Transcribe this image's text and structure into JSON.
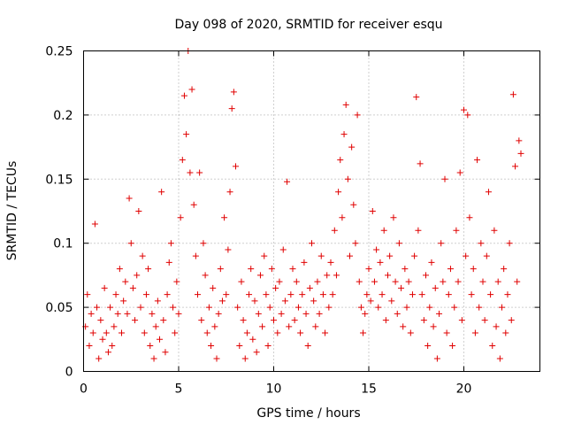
{
  "chart_data": {
    "type": "scatter",
    "title": "Day 098 of 2020, SRMTID for receiver esqu",
    "xlabel": "GPS time / hours",
    "ylabel": "SRMTID / TECUs",
    "xlim": [
      0,
      24
    ],
    "ylim": [
      0,
      0.25
    ],
    "x_ticks": [
      0,
      5,
      10,
      15,
      20
    ],
    "x_tick_labels": [
      "0",
      "5",
      "10",
      "15",
      "20"
    ],
    "y_ticks": [
      0,
      0.05,
      0.1,
      0.15,
      0.2,
      0.25
    ],
    "y_tick_labels": [
      "0",
      "0.05",
      "0.1",
      "0.15",
      "0.2",
      "0.25"
    ],
    "grid": true,
    "legend": "none",
    "series": [
      {
        "name": "SRMTID",
        "color": "#e00000",
        "marker": "plus",
        "points": [
          [
            0.1,
            0.035
          ],
          [
            0.2,
            0.06
          ],
          [
            0.3,
            0.02
          ],
          [
            0.4,
            0.045
          ],
          [
            0.5,
            0.03
          ],
          [
            0.6,
            0.115
          ],
          [
            0.7,
            0.05
          ],
          [
            0.8,
            0.01
          ],
          [
            0.9,
            0.04
          ],
          [
            1.0,
            0.025
          ],
          [
            1.1,
            0.065
          ],
          [
            1.2,
            0.03
          ],
          [
            1.3,
            0.015
          ],
          [
            1.4,
            0.05
          ],
          [
            1.5,
            0.02
          ],
          [
            1.6,
            0.035
          ],
          [
            1.7,
            0.06
          ],
          [
            1.8,
            0.045
          ],
          [
            1.9,
            0.08
          ],
          [
            2.0,
            0.03
          ],
          [
            2.1,
            0.055
          ],
          [
            2.2,
            0.07
          ],
          [
            2.3,
            0.045
          ],
          [
            2.4,
            0.135
          ],
          [
            2.5,
            0.1
          ],
          [
            2.6,
            0.065
          ],
          [
            2.7,
            0.04
          ],
          [
            2.8,
            0.075
          ],
          [
            2.9,
            0.125
          ],
          [
            3.0,
            0.05
          ],
          [
            3.1,
            0.09
          ],
          [
            3.2,
            0.03
          ],
          [
            3.3,
            0.06
          ],
          [
            3.4,
            0.08
          ],
          [
            3.5,
            0.02
          ],
          [
            3.6,
            0.045
          ],
          [
            3.7,
            0.01
          ],
          [
            3.8,
            0.035
          ],
          [
            3.9,
            0.055
          ],
          [
            4.0,
            0.025
          ],
          [
            4.1,
            0.14
          ],
          [
            4.2,
            0.04
          ],
          [
            4.3,
            0.015
          ],
          [
            4.4,
            0.06
          ],
          [
            4.5,
            0.085
          ],
          [
            4.6,
            0.1
          ],
          [
            4.7,
            0.05
          ],
          [
            4.8,
            0.03
          ],
          [
            4.9,
            0.07
          ],
          [
            5.0,
            0.045
          ],
          [
            5.1,
            0.12
          ],
          [
            5.2,
            0.165
          ],
          [
            5.3,
            0.215
          ],
          [
            5.4,
            0.185
          ],
          [
            5.5,
            0.25
          ],
          [
            5.6,
            0.155
          ],
          [
            5.7,
            0.22
          ],
          [
            5.8,
            0.13
          ],
          [
            5.9,
            0.09
          ],
          [
            6.0,
            0.06
          ],
          [
            6.1,
            0.155
          ],
          [
            6.2,
            0.04
          ],
          [
            6.3,
            0.1
          ],
          [
            6.4,
            0.075
          ],
          [
            6.5,
            0.03
          ],
          [
            6.6,
            0.05
          ],
          [
            6.7,
            0.02
          ],
          [
            6.8,
            0.065
          ],
          [
            6.9,
            0.035
          ],
          [
            7.0,
            0.01
          ],
          [
            7.1,
            0.045
          ],
          [
            7.2,
            0.08
          ],
          [
            7.3,
            0.055
          ],
          [
            7.4,
            0.12
          ],
          [
            7.5,
            0.06
          ],
          [
            7.6,
            0.095
          ],
          [
            7.7,
            0.14
          ],
          [
            7.8,
            0.205
          ],
          [
            7.9,
            0.218
          ],
          [
            8.0,
            0.16
          ],
          [
            8.1,
            0.05
          ],
          [
            8.2,
            0.02
          ],
          [
            8.3,
            0.07
          ],
          [
            8.4,
            0.04
          ],
          [
            8.5,
            0.01
          ],
          [
            8.6,
            0.03
          ],
          [
            8.7,
            0.06
          ],
          [
            8.8,
            0.08
          ],
          [
            8.9,
            0.025
          ],
          [
            9.0,
            0.055
          ],
          [
            9.1,
            0.015
          ],
          [
            9.2,
            0.045
          ],
          [
            9.3,
            0.075
          ],
          [
            9.4,
            0.035
          ],
          [
            9.5,
            0.09
          ],
          [
            9.6,
            0.06
          ],
          [
            9.7,
            0.02
          ],
          [
            9.8,
            0.05
          ],
          [
            9.9,
            0.08
          ],
          [
            10.0,
            0.04
          ],
          [
            10.1,
            0.065
          ],
          [
            10.2,
            0.03
          ],
          [
            10.3,
            0.07
          ],
          [
            10.4,
            0.045
          ],
          [
            10.5,
            0.095
          ],
          [
            10.6,
            0.055
          ],
          [
            10.7,
            0.148
          ],
          [
            10.8,
            0.035
          ],
          [
            10.9,
            0.06
          ],
          [
            11.0,
            0.08
          ],
          [
            11.1,
            0.04
          ],
          [
            11.2,
            0.07
          ],
          [
            11.3,
            0.05
          ],
          [
            11.4,
            0.03
          ],
          [
            11.5,
            0.06
          ],
          [
            11.6,
            0.085
          ],
          [
            11.7,
            0.045
          ],
          [
            11.8,
            0.02
          ],
          [
            11.9,
            0.065
          ],
          [
            12.0,
            0.1
          ],
          [
            12.1,
            0.055
          ],
          [
            12.2,
            0.035
          ],
          [
            12.3,
            0.07
          ],
          [
            12.4,
            0.045
          ],
          [
            12.5,
            0.09
          ],
          [
            12.6,
            0.06
          ],
          [
            12.7,
            0.03
          ],
          [
            12.8,
            0.075
          ],
          [
            12.9,
            0.05
          ],
          [
            13.0,
            0.085
          ],
          [
            13.1,
            0.06
          ],
          [
            13.2,
            0.11
          ],
          [
            13.3,
            0.075
          ],
          [
            13.4,
            0.14
          ],
          [
            13.5,
            0.165
          ],
          [
            13.6,
            0.12
          ],
          [
            13.7,
            0.185
          ],
          [
            13.8,
            0.208
          ],
          [
            13.9,
            0.15
          ],
          [
            14.0,
            0.09
          ],
          [
            14.1,
            0.175
          ],
          [
            14.2,
            0.13
          ],
          [
            14.3,
            0.1
          ],
          [
            14.4,
            0.2
          ],
          [
            14.5,
            0.07
          ],
          [
            14.6,
            0.05
          ],
          [
            14.7,
            0.03
          ],
          [
            14.8,
            0.045
          ],
          [
            14.9,
            0.06
          ],
          [
            15.0,
            0.08
          ],
          [
            15.1,
            0.055
          ],
          [
            15.2,
            0.125
          ],
          [
            15.3,
            0.07
          ],
          [
            15.4,
            0.095
          ],
          [
            15.5,
            0.05
          ],
          [
            15.6,
            0.085
          ],
          [
            15.7,
            0.06
          ],
          [
            15.8,
            0.11
          ],
          [
            15.9,
            0.04
          ],
          [
            16.0,
            0.075
          ],
          [
            16.1,
            0.09
          ],
          [
            16.2,
            0.055
          ],
          [
            16.3,
            0.12
          ],
          [
            16.4,
            0.07
          ],
          [
            16.5,
            0.045
          ],
          [
            16.6,
            0.1
          ],
          [
            16.7,
            0.065
          ],
          [
            16.8,
            0.035
          ],
          [
            16.9,
            0.08
          ],
          [
            17.0,
            0.05
          ],
          [
            17.1,
            0.07
          ],
          [
            17.2,
            0.03
          ],
          [
            17.3,
            0.06
          ],
          [
            17.4,
            0.09
          ],
          [
            17.5,
            0.214
          ],
          [
            17.6,
            0.11
          ],
          [
            17.7,
            0.162
          ],
          [
            17.8,
            0.06
          ],
          [
            17.9,
            0.04
          ],
          [
            18.0,
            0.075
          ],
          [
            18.1,
            0.02
          ],
          [
            18.2,
            0.05
          ],
          [
            18.3,
            0.085
          ],
          [
            18.4,
            0.035
          ],
          [
            18.5,
            0.065
          ],
          [
            18.6,
            0.01
          ],
          [
            18.7,
            0.045
          ],
          [
            18.8,
            0.1
          ],
          [
            18.9,
            0.07
          ],
          [
            19.0,
            0.15
          ],
          [
            19.1,
            0.03
          ],
          [
            19.2,
            0.06
          ],
          [
            19.3,
            0.08
          ],
          [
            19.4,
            0.02
          ],
          [
            19.5,
            0.05
          ],
          [
            19.6,
            0.11
          ],
          [
            19.7,
            0.07
          ],
          [
            19.8,
            0.155
          ],
          [
            19.9,
            0.04
          ],
          [
            20.0,
            0.204
          ],
          [
            20.1,
            0.09
          ],
          [
            20.2,
            0.2
          ],
          [
            20.3,
            0.12
          ],
          [
            20.4,
            0.06
          ],
          [
            20.5,
            0.08
          ],
          [
            20.6,
            0.03
          ],
          [
            20.7,
            0.165
          ],
          [
            20.8,
            0.05
          ],
          [
            20.9,
            0.1
          ],
          [
            21.0,
            0.07
          ],
          [
            21.1,
            0.04
          ],
          [
            21.2,
            0.09
          ],
          [
            21.3,
            0.14
          ],
          [
            21.4,
            0.06
          ],
          [
            21.5,
            0.02
          ],
          [
            21.6,
            0.11
          ],
          [
            21.7,
            0.035
          ],
          [
            21.8,
            0.07
          ],
          [
            21.9,
            0.01
          ],
          [
            22.0,
            0.05
          ],
          [
            22.1,
            0.08
          ],
          [
            22.2,
            0.03
          ],
          [
            22.3,
            0.06
          ],
          [
            22.4,
            0.1
          ],
          [
            22.5,
            0.04
          ],
          [
            22.6,
            0.216
          ],
          [
            22.7,
            0.16
          ],
          [
            22.8,
            0.07
          ],
          [
            22.9,
            0.18
          ],
          [
            23.0,
            0.17
          ]
        ]
      }
    ]
  }
}
